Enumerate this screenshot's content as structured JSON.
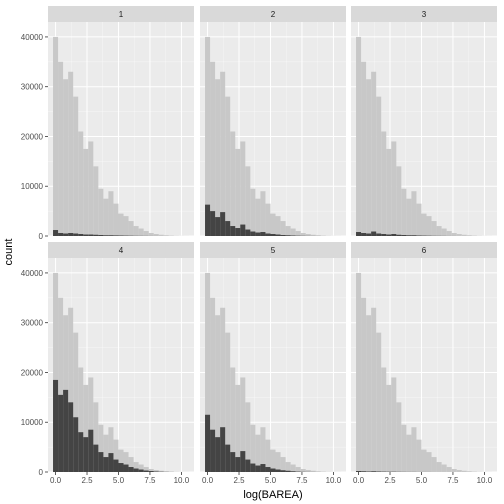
{
  "chart_data": {
    "type": "histogram-facets",
    "xlabel": "log(BAREA)",
    "ylabel": "count",
    "xlim": [
      -0.6,
      11.0
    ],
    "ylim": [
      0,
      43000
    ],
    "x_ticks": [
      0.0,
      2.5,
      5.0,
      7.5,
      10.0
    ],
    "x_tick_labels": [
      "0.0",
      "2.5",
      "5.0",
      "7.5",
      "10.0"
    ],
    "y_ticks": [
      0,
      10000,
      20000,
      30000,
      40000
    ],
    "y_tick_labels": [
      "0",
      "10000",
      "20000",
      "30000",
      "40000"
    ],
    "bin_width": 0.4,
    "bin_start": -0.2,
    "facet_layout": {
      "rows": 2,
      "cols": 3
    },
    "colors": {
      "background": "#ebebeb",
      "grid_major": "#ffffff",
      "strip": "#d9d9d9",
      "total_fill": "#c8c8c8",
      "subset_fill": "#444444"
    },
    "series": [
      {
        "name": "total",
        "values": [
          40000,
          35000,
          31500,
          33000,
          28000,
          21000,
          17500,
          19000,
          14000,
          9500,
          7500,
          9000,
          6500,
          4500,
          4000,
          3000,
          2000,
          1500,
          1000,
          600,
          400,
          250,
          150,
          80,
          40,
          20,
          10
        ]
      }
    ],
    "facets": [
      {
        "label": "1",
        "subset": [
          1200,
          600,
          500,
          600,
          500,
          400,
          300,
          300,
          250,
          200,
          150,
          150,
          120,
          100,
          80,
          60,
          40,
          30,
          20,
          10,
          5,
          0,
          0,
          0,
          0,
          0,
          0
        ]
      },
      {
        "label": "2",
        "subset": [
          6300,
          5000,
          3800,
          4800,
          3000,
          2000,
          1600,
          2300,
          1300,
          900,
          700,
          800,
          500,
          400,
          300,
          200,
          150,
          100,
          60,
          40,
          20,
          10,
          5,
          0,
          0,
          0,
          0
        ]
      },
      {
        "label": "3",
        "subset": [
          800,
          600,
          500,
          900,
          500,
          400,
          300,
          400,
          250,
          200,
          150,
          150,
          100,
          80,
          60,
          40,
          30,
          20,
          10,
          5,
          0,
          0,
          0,
          0,
          0,
          0,
          0
        ]
      },
      {
        "label": "4",
        "subset": [
          18500,
          15500,
          16500,
          14000,
          11000,
          8000,
          7000,
          8500,
          5500,
          4000,
          3000,
          3800,
          2500,
          1800,
          1500,
          1000,
          700,
          500,
          300,
          200,
          100,
          50,
          20,
          10,
          0,
          0,
          0
        ]
      },
      {
        "label": "5",
        "subset": [
          11500,
          8500,
          7000,
          9000,
          5500,
          4000,
          3000,
          4200,
          2500,
          1700,
          1300,
          1600,
          1000,
          700,
          500,
          350,
          250,
          150,
          80,
          40,
          20,
          10,
          0,
          0,
          0,
          0,
          0
        ]
      },
      {
        "label": "6",
        "subset": [
          200,
          150,
          100,
          150,
          100,
          80,
          60,
          60,
          40,
          30,
          20,
          20,
          10,
          10,
          5,
          0,
          0,
          0,
          0,
          0,
          0,
          0,
          0,
          0,
          0,
          0,
          0
        ]
      }
    ]
  }
}
